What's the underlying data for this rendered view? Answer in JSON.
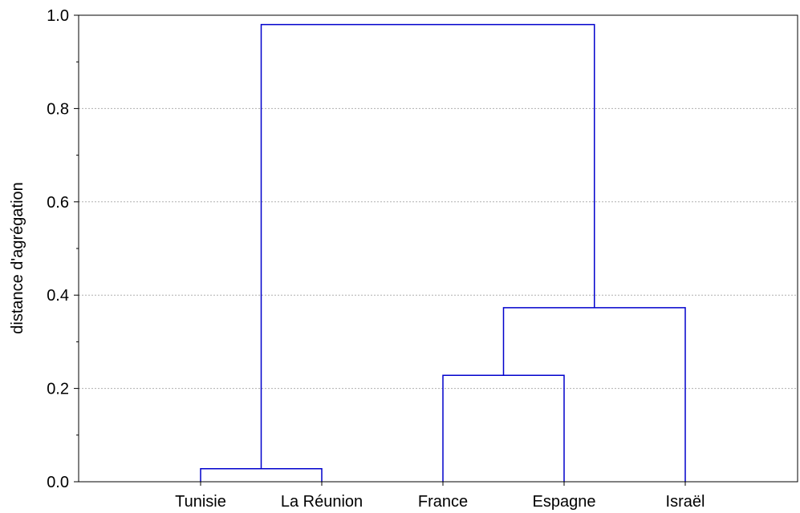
{
  "chart_data": {
    "type": "dendrogram",
    "ylabel": "distance d'agrégation",
    "ylim": [
      0.0,
      1.0
    ],
    "yticks": [
      "0.0",
      "0.2",
      "0.4",
      "0.6",
      "0.8",
      "1.0"
    ],
    "grid": true,
    "leaves": [
      "Tunisie",
      "La Réunion",
      "France",
      "Espagne",
      "Israël"
    ],
    "merges": [
      {
        "left": "Tunisie",
        "right": "La Réunion",
        "height": 0.028
      },
      {
        "left": "France",
        "right": "Espagne",
        "height": 0.228
      },
      {
        "left": "France+Espagne",
        "right": "Israël",
        "height": 0.373
      },
      {
        "left": "Tunisie+La Réunion",
        "right": "France+Espagne+Israël",
        "height": 0.98
      }
    ],
    "link_color": "#0000cc",
    "grid_color": "#b0b0b0"
  }
}
